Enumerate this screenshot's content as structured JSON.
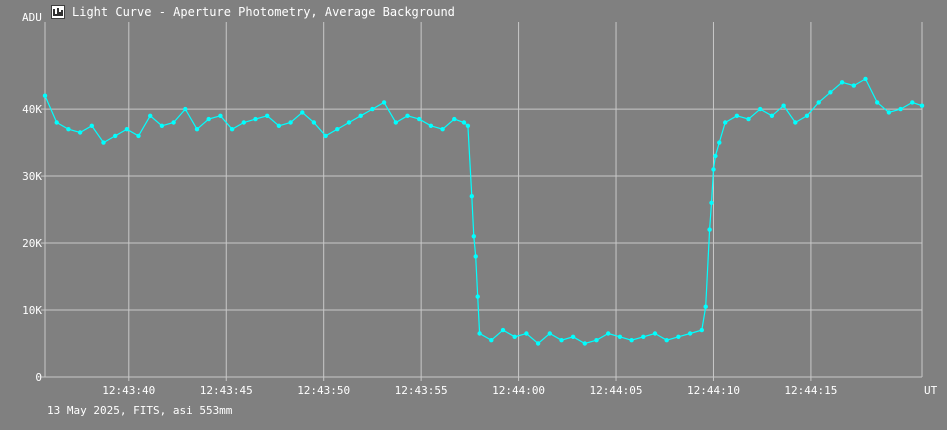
{
  "window": {
    "title": "Light Curve - Aperture Photometry, Average Background",
    "icon": "light-curve-app-icon",
    "footer": "13 May 2025, FITS, asi 553mm"
  },
  "colors": {
    "background": "#808080",
    "grid": "#c8c8c8",
    "series": "#00ffff",
    "text": "#ffffff"
  },
  "chart_data": {
    "type": "line",
    "title": "Light Curve - Aperture Photometry, Average Background",
    "xlabel": "UT",
    "ylabel": "ADU",
    "grid": true,
    "x_unit": "UT time (seconds past 12:43:00)",
    "xlim": [
      35.7,
      80.7
    ],
    "ylim": [
      0,
      53000
    ],
    "x_ticks": [
      40,
      45,
      50,
      55,
      60,
      65,
      70,
      75
    ],
    "x_tick_labels": [
      "12:43:40",
      "12:43:45",
      "12:43:50",
      "12:43:55",
      "12:44:00",
      "12:44:05",
      "12:44:10",
      "12:44:15"
    ],
    "y_ticks": [
      0,
      10000,
      20000,
      30000,
      40000
    ],
    "y_tick_labels": [
      "0",
      "10K",
      "20K",
      "30K",
      "40K"
    ],
    "series": [
      {
        "markers": true,
        "x": [
          35.7,
          36.3,
          36.9,
          37.5,
          38.1,
          38.7,
          39.3,
          39.9,
          40.5,
          41.1,
          41.7,
          42.3,
          42.9,
          43.5,
          44.1,
          44.7,
          45.3,
          45.9,
          46.5,
          47.1,
          47.7,
          48.3,
          48.9,
          49.5,
          50.1,
          50.7,
          51.3,
          51.9,
          52.5,
          53.1,
          53.7,
          54.3,
          54.9,
          55.5,
          56.1,
          56.7,
          57.2,
          57.4,
          57.6,
          57.7,
          57.8,
          57.9,
          58.0,
          58.6,
          59.2,
          59.8,
          60.4,
          61.0,
          61.6,
          62.2,
          62.8,
          63.4,
          64.0,
          64.6,
          65.2,
          65.8,
          66.4,
          67.0,
          67.6,
          68.2,
          68.8,
          69.4,
          69.6,
          69.8,
          69.9,
          70.0,
          70.1,
          70.3,
          70.6,
          71.2,
          71.8,
          72.4,
          73.0,
          73.6,
          74.2,
          74.8,
          75.4,
          76.0,
          76.6,
          77.2,
          77.8,
          78.4,
          79.0,
          79.6,
          80.2,
          80.7
        ],
        "y": [
          42000,
          38000,
          37000,
          36500,
          37500,
          35000,
          36000,
          37000,
          36000,
          39000,
          37500,
          38000,
          40000,
          37000,
          38500,
          39000,
          37000,
          38000,
          38500,
          39000,
          37500,
          38000,
          39500,
          38000,
          36000,
          37000,
          38000,
          39000,
          40000,
          41000,
          38000,
          39000,
          38500,
          37500,
          37000,
          38500,
          38000,
          37500,
          27000,
          21000,
          18000,
          12000,
          6500,
          5500,
          7000,
          6000,
          6500,
          5000,
          6500,
          5500,
          6000,
          5000,
          5500,
          6500,
          6000,
          5500,
          6000,
          6500,
          5500,
          6000,
          6500,
          7000,
          10500,
          22000,
          26000,
          31000,
          33000,
          35000,
          38000,
          39000,
          38500,
          40000,
          39000,
          40500,
          38000,
          39000,
          41000,
          42500,
          44000,
          43500,
          44500,
          41000,
          39500,
          40000,
          41000,
          40500
        ]
      }
    ]
  }
}
